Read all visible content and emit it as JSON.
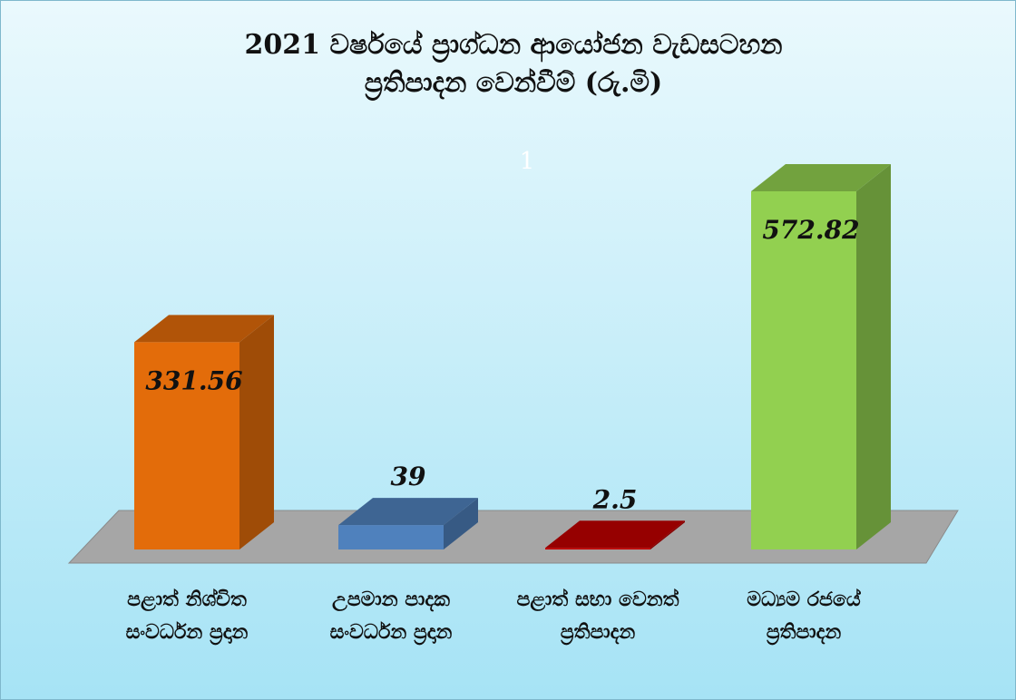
{
  "chart_data": {
    "type": "bar3d",
    "title": [
      "2021 වර්ෂයේ ප්‍රාග්ධන ආයෝජන වැඩසටහන",
      "ප්‍රතිපාදන වෙන්වීම්   (රු.මි)"
    ],
    "annotation": "1",
    "categories": [
      "පළාත් නිශ්චිත සංවර්ධන ප්‍රදාන",
      "උපමාන පාදක සංවර්ධන ප්‍රදාන",
      "පළාත් සභා වෙනත් ප්‍රතිපාදන",
      "මධ්‍යම රජයේ ප්‍රතිපාදන"
    ],
    "values": [
      331.56,
      39,
      2.5,
      572.82
    ],
    "colors": [
      "#e36c0a",
      "#4f81bd",
      "#c00000",
      "#92d050"
    ]
  }
}
